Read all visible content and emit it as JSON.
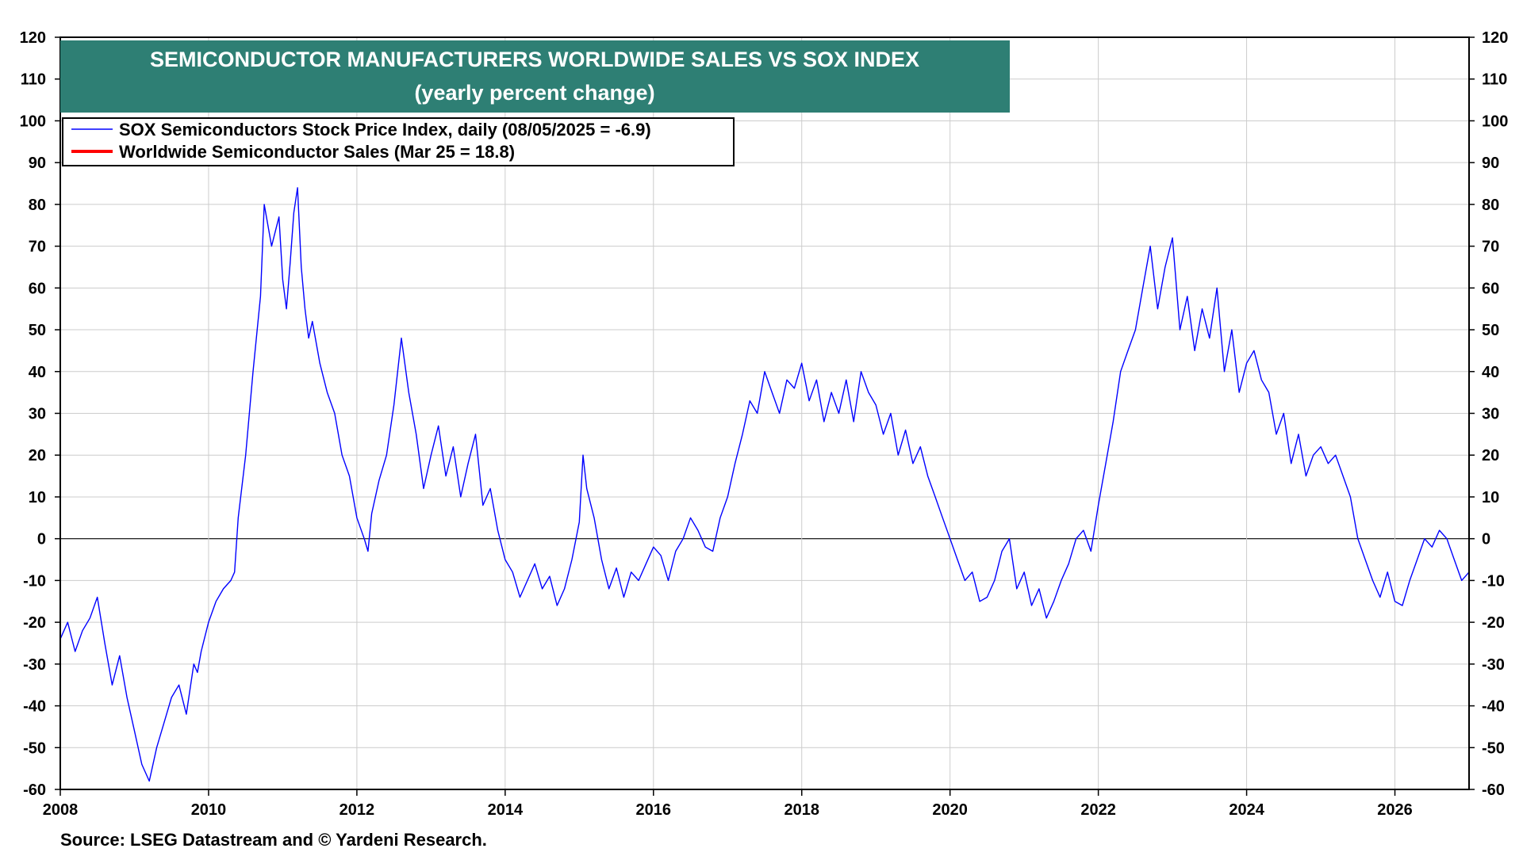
{
  "chart_data": {
    "type": "line",
    "title": "SEMICONDUCTOR MANUFACTURERS WORLDWIDE SALES VS SOX INDEX",
    "subtitle": "(yearly percent change)",
    "source": "Source: LSEG Datastream and © Yardeni Research.",
    "xlim": [
      2008,
      2027
    ],
    "ylim": [
      -60,
      120
    ],
    "x_ticks": [
      "2008",
      "2010",
      "2012",
      "2014",
      "2016",
      "2018",
      "2020",
      "2022",
      "2024",
      "2026"
    ],
    "y_ticks": [
      "120",
      "110",
      "100",
      "90",
      "80",
      "70",
      "60",
      "50",
      "40",
      "30",
      "20",
      "10",
      "0",
      "-10",
      "-20",
      "-30",
      "-40",
      "-50",
      "-60"
    ],
    "grid": true,
    "legend_position": "top-left",
    "colors": {
      "title_bg": "#2e7f74",
      "sox": "#0000ff",
      "sales": "#ff0000",
      "grid": "#cccccc"
    },
    "series": [
      {
        "name": "SOX Semiconductors Stock Price Index, daily (08/05/2025 = -6.9)",
        "color": "#0000ff",
        "style": "thin",
        "points": [
          [
            2008.0,
            -24
          ],
          [
            2008.1,
            -20
          ],
          [
            2008.2,
            -27
          ],
          [
            2008.3,
            -22
          ],
          [
            2008.4,
            -19
          ],
          [
            2008.5,
            -14
          ],
          [
            2008.6,
            -25
          ],
          [
            2008.7,
            -35
          ],
          [
            2008.8,
            -28
          ],
          [
            2008.9,
            -38
          ],
          [
            2009.0,
            -46
          ],
          [
            2009.1,
            -54
          ],
          [
            2009.2,
            -58
          ],
          [
            2009.3,
            -50
          ],
          [
            2009.4,
            -44
          ],
          [
            2009.5,
            -38
          ],
          [
            2009.6,
            -35
          ],
          [
            2009.7,
            -42
          ],
          [
            2009.8,
            -30
          ],
          [
            2009.85,
            -32
          ],
          [
            2009.9,
            -27
          ],
          [
            2010.0,
            -20
          ],
          [
            2010.1,
            -15
          ],
          [
            2010.2,
            -12
          ],
          [
            2010.3,
            -10
          ],
          [
            2010.35,
            -8
          ],
          [
            2010.4,
            5
          ],
          [
            2010.5,
            20
          ],
          [
            2010.6,
            40
          ],
          [
            2010.7,
            58
          ],
          [
            2010.75,
            80
          ],
          [
            2010.85,
            70
          ],
          [
            2010.95,
            77
          ],
          [
            2011.0,
            62
          ],
          [
            2011.05,
            55
          ],
          [
            2011.1,
            66
          ],
          [
            2011.15,
            78
          ],
          [
            2011.2,
            84
          ],
          [
            2011.25,
            65
          ],
          [
            2011.3,
            55
          ],
          [
            2011.35,
            48
          ],
          [
            2011.4,
            52
          ],
          [
            2011.5,
            42
          ],
          [
            2011.6,
            35
          ],
          [
            2011.7,
            30
          ],
          [
            2011.8,
            20
          ],
          [
            2011.9,
            15
          ],
          [
            2012.0,
            5
          ],
          [
            2012.1,
            0
          ],
          [
            2012.15,
            -3
          ],
          [
            2012.2,
            6
          ],
          [
            2012.3,
            14
          ],
          [
            2012.4,
            20
          ],
          [
            2012.5,
            32
          ],
          [
            2012.6,
            48
          ],
          [
            2012.7,
            35
          ],
          [
            2012.8,
            25
          ],
          [
            2012.9,
            12
          ],
          [
            2013.0,
            20
          ],
          [
            2013.1,
            27
          ],
          [
            2013.2,
            15
          ],
          [
            2013.3,
            22
          ],
          [
            2013.4,
            10
          ],
          [
            2013.5,
            18
          ],
          [
            2013.6,
            25
          ],
          [
            2013.7,
            8
          ],
          [
            2013.8,
            12
          ],
          [
            2013.9,
            2
          ],
          [
            2014.0,
            -5
          ],
          [
            2014.1,
            -8
          ],
          [
            2014.2,
            -14
          ],
          [
            2014.3,
            -10
          ],
          [
            2014.4,
            -6
          ],
          [
            2014.5,
            -12
          ],
          [
            2014.6,
            -9
          ],
          [
            2014.7,
            -16
          ],
          [
            2014.8,
            -12
          ],
          [
            2014.9,
            -5
          ],
          [
            2015.0,
            4
          ],
          [
            2015.05,
            20
          ],
          [
            2015.1,
            12
          ],
          [
            2015.2,
            5
          ],
          [
            2015.3,
            -5
          ],
          [
            2015.4,
            -12
          ],
          [
            2015.5,
            -7
          ],
          [
            2015.6,
            -14
          ],
          [
            2015.7,
            -8
          ],
          [
            2015.8,
            -10
          ],
          [
            2015.9,
            -6
          ],
          [
            2016.0,
            -2
          ],
          [
            2016.1,
            -4
          ],
          [
            2016.2,
            -10
          ],
          [
            2016.3,
            -3
          ],
          [
            2016.4,
            0
          ],
          [
            2016.5,
            5
          ],
          [
            2016.6,
            2
          ],
          [
            2016.7,
            -2
          ],
          [
            2016.8,
            -3
          ],
          [
            2016.9,
            5
          ],
          [
            2017.0,
            10
          ],
          [
            2017.1,
            18
          ],
          [
            2017.2,
            25
          ],
          [
            2017.3,
            33
          ],
          [
            2017.4,
            30
          ],
          [
            2017.5,
            40
          ],
          [
            2017.6,
            35
          ],
          [
            2017.7,
            30
          ],
          [
            2017.8,
            38
          ],
          [
            2017.9,
            36
          ],
          [
            2018.0,
            42
          ],
          [
            2018.1,
            33
          ],
          [
            2018.2,
            38
          ],
          [
            2018.3,
            28
          ],
          [
            2018.4,
            35
          ],
          [
            2018.5,
            30
          ],
          [
            2018.6,
            38
          ],
          [
            2018.7,
            28
          ],
          [
            2018.8,
            40
          ],
          [
            2018.9,
            35
          ],
          [
            2019.0,
            32
          ],
          [
            2019.1,
            25
          ],
          [
            2019.2,
            30
          ],
          [
            2019.3,
            20
          ],
          [
            2019.4,
            26
          ],
          [
            2019.5,
            18
          ],
          [
            2019.6,
            22
          ],
          [
            2019.7,
            15
          ],
          [
            2019.8,
            10
          ],
          [
            2019.9,
            5
          ],
          [
            2020.0,
            0
          ],
          [
            2020.1,
            -5
          ],
          [
            2020.2,
            -10
          ],
          [
            2020.3,
            -8
          ],
          [
            2020.4,
            -15
          ],
          [
            2020.5,
            -14
          ],
          [
            2020.6,
            -10
          ],
          [
            2020.7,
            -3
          ],
          [
            2020.8,
            0
          ],
          [
            2020.9,
            -12
          ],
          [
            2021.0,
            -8
          ],
          [
            2021.1,
            -16
          ],
          [
            2021.2,
            -12
          ],
          [
            2021.3,
            -19
          ],
          [
            2021.4,
            -15
          ],
          [
            2021.5,
            -10
          ],
          [
            2021.6,
            -6
          ],
          [
            2021.7,
            0
          ],
          [
            2021.8,
            2
          ],
          [
            2021.9,
            -3
          ],
          [
            2022.0,
            8
          ],
          [
            2022.1,
            18
          ],
          [
            2022.2,
            28
          ],
          [
            2022.3,
            40
          ],
          [
            2022.4,
            45
          ],
          [
            2022.5,
            50
          ],
          [
            2022.6,
            60
          ],
          [
            2022.7,
            70
          ],
          [
            2022.8,
            55
          ],
          [
            2022.9,
            65
          ],
          [
            2023.0,
            72
          ],
          [
            2023.1,
            50
          ],
          [
            2023.2,
            58
          ],
          [
            2023.3,
            45
          ],
          [
            2023.4,
            55
          ],
          [
            2023.5,
            48
          ],
          [
            2023.6,
            60
          ],
          [
            2023.7,
            40
          ],
          [
            2023.8,
            50
          ],
          [
            2023.9,
            35
          ],
          [
            2024.0,
            42
          ],
          [
            2024.1,
            45
          ],
          [
            2024.2,
            38
          ],
          [
            2024.3,
            35
          ],
          [
            2024.4,
            25
          ],
          [
            2024.5,
            30
          ],
          [
            2024.6,
            18
          ],
          [
            2024.7,
            25
          ],
          [
            2024.8,
            15
          ],
          [
            2024.9,
            20
          ],
          [
            2025.0,
            22
          ],
          [
            2025.1,
            18
          ],
          [
            2025.2,
            20
          ],
          [
            2025.3,
            15
          ],
          [
            2025.4,
            10
          ],
          [
            2025.5,
            0
          ],
          [
            2025.6,
            -5
          ],
          [
            2025.7,
            -10
          ],
          [
            2025.8,
            -14
          ],
          [
            2025.9,
            -8
          ],
          [
            2026.0,
            -15
          ],
          [
            2026.1,
            -16
          ],
          [
            2026.2,
            -10
          ],
          [
            2026.3,
            -5
          ],
          [
            2026.4,
            0
          ],
          [
            2026.5,
            -2
          ],
          [
            2026.6,
            2
          ],
          [
            2026.7,
            0
          ],
          [
            2026.8,
            -5
          ],
          [
            2026.9,
            -10
          ],
          [
            2027.0,
            -8
          ]
        ]
      },
      {
        "name": "Worldwide Semiconductor Sales (Mar 25 = 18.8)",
        "color": "#ff0000",
        "style": "thick",
        "points": []
      }
    ]
  }
}
